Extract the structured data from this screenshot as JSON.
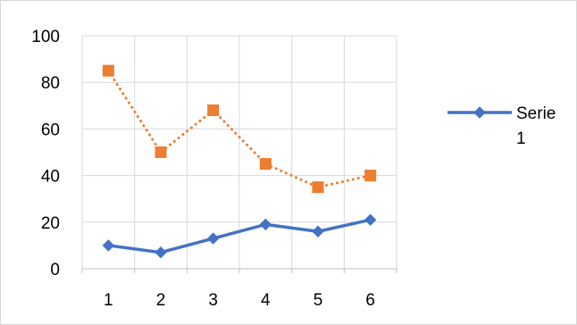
{
  "chart_data": {
    "type": "line",
    "title": "",
    "xlabel": "",
    "ylabel": "",
    "x": [
      1,
      2,
      3,
      4,
      5,
      6
    ],
    "x_tick_labels": [
      "1",
      "2",
      "3",
      "4",
      "5",
      "6"
    ],
    "ylim": [
      0,
      100
    ],
    "y_ticks": [
      0,
      20,
      40,
      60,
      80,
      100
    ],
    "y_tick_labels": [
      "0",
      "20",
      "40",
      "60",
      "80",
      "100"
    ],
    "grid": true,
    "legend_placement": "right",
    "series": [
      {
        "name": "Serie 1",
        "values": [
          10,
          7,
          13,
          19,
          16,
          21
        ],
        "color": "#4472c4",
        "line_style": "solid",
        "marker": "diamond",
        "in_legend": true
      },
      {
        "values": [
          85,
          50,
          68,
          45,
          35,
          40
        ],
        "color": "#ed7d31",
        "line_style": "dotted",
        "marker": "square",
        "in_legend": false
      }
    ],
    "legend": {
      "label_lines": [
        "Serie",
        "1"
      ]
    }
  }
}
